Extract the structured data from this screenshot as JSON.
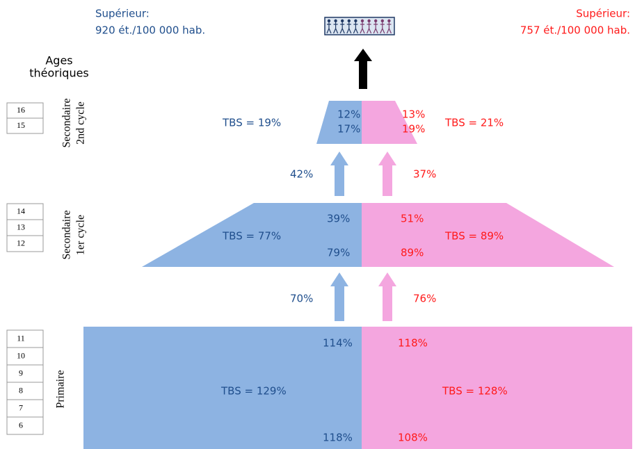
{
  "left_header": {
    "title": "Supérieur:",
    "rate": "920 ét./100 000 hab."
  },
  "right_header": {
    "title": "Supérieur:",
    "rate": "757 ét./100 000 hab."
  },
  "ages_title": [
    "Ages",
    "théoriques"
  ],
  "levels": [
    {
      "name": [
        "Secondaire",
        "2nd cycle"
      ],
      "ages": [
        "16",
        "15"
      ],
      "left": {
        "tbs": "TBS = 19%",
        "top": "12%",
        "bottom": "17%"
      },
      "right": {
        "tbs": "TBS = 21%",
        "top": "13%",
        "bottom": "19%"
      }
    },
    {
      "name": [
        "Secondaire",
        "1er cycle"
      ],
      "ages": [
        "14",
        "13",
        "12"
      ],
      "left": {
        "tbs": "TBS = 77%",
        "top": "39%",
        "bottom": "79%"
      },
      "right": {
        "tbs": "TBS = 89%",
        "top": "51%",
        "bottom": "89%"
      }
    },
    {
      "name": [
        "Primaire"
      ],
      "ages": [
        "11",
        "10",
        "9",
        "8",
        "7",
        "6"
      ],
      "left": {
        "tbs": "TBS = 129%",
        "top": "114%",
        "bottom": "118%"
      },
      "right": {
        "tbs": "TBS = 128%",
        "top": "118%",
        "bottom": "108%"
      }
    }
  ],
  "transitions": [
    {
      "left": "42%",
      "right": "37%"
    },
    {
      "left": "70%",
      "right": "76%"
    }
  ]
}
